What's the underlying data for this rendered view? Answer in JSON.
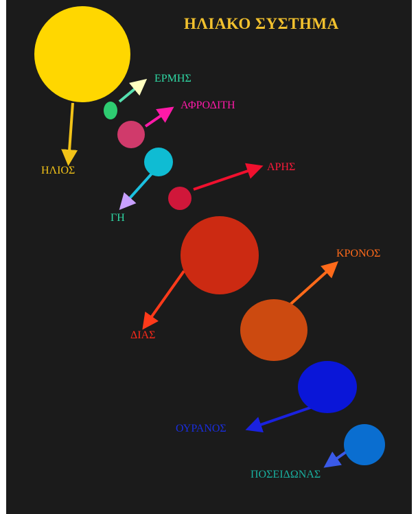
{
  "title": "ΗΛΙΑΚΟ ΣΥΣΤΗΜΑ",
  "colors": {
    "background": "#1b1b1b",
    "title": "#f2c12e"
  },
  "bodies": [
    {
      "id": "sun",
      "label": "ΗΛΙΟΣ",
      "body_color": "#ffd700",
      "arrow_color": "#f2c318",
      "label_color": "#f2c318"
    },
    {
      "id": "mercury",
      "label": "ΕΡΜΗΣ",
      "body_color": "#2ecc71",
      "arrow_color": "#55e0b0",
      "arrow_head_color": "#ffffc0",
      "label_color": "#2fd9a5"
    },
    {
      "id": "venus",
      "label": "ΑΦΡΟΔΙΤΗ",
      "body_color": "#d03a6b",
      "arrow_color": "#ff1aa8",
      "label_color": "#ff1aa8"
    },
    {
      "id": "earth",
      "label": "ΓΗ",
      "body_color": "#0fbcd3",
      "arrow_color": "#1bc0e0",
      "arrow_head_color": "#c8a0ff",
      "label_color": "#2fd9a5"
    },
    {
      "id": "mars",
      "label": "ΑΡΗΣ",
      "body_color": "#d0173a",
      "arrow_color": "#f0102e",
      "label_color": "#ff1a3a"
    },
    {
      "id": "jupiter",
      "label": "ΔΙΑΣ",
      "body_color": "#cc2a12",
      "arrow_color": "#ff3a1a",
      "label_color": "#ff2a1a"
    },
    {
      "id": "saturn",
      "label": "ΚΡΟΝΟΣ",
      "body_color": "#cc4a10",
      "arrow_color": "#ff6a1a",
      "label_color": "#ff6a1a"
    },
    {
      "id": "uranus",
      "label": "ΟΥΡΑΝΟΣ",
      "body_color": "#0a16d8",
      "arrow_color": "#1a22e0",
      "label_color": "#1a2ee0"
    },
    {
      "id": "neptune",
      "label": "ΠΟΣΕΙΔΩΝΑΣ",
      "body_color": "#0a6ed0",
      "arrow_color": "#3a5ae8",
      "label_color": "#19b0a0"
    }
  ]
}
